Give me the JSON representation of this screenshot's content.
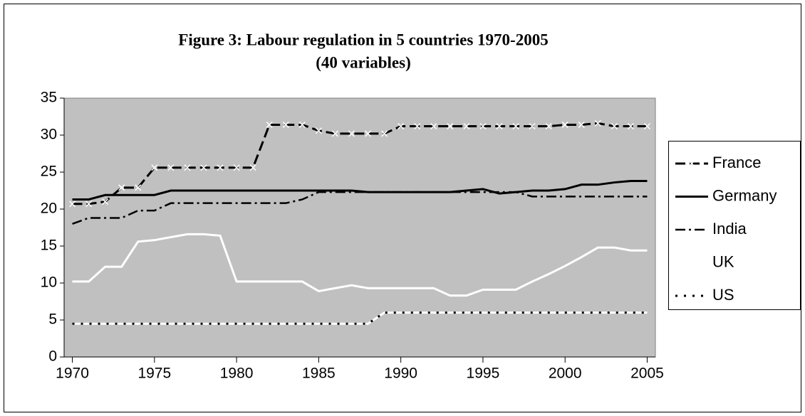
{
  "chart_data": {
    "type": "line",
    "title": "Figure 3: Labour regulation in 5 countries 1970-2005",
    "subtitle": "(40 variables)",
    "x": [
      1970,
      1971,
      1972,
      1973,
      1974,
      1975,
      1976,
      1977,
      1978,
      1979,
      1980,
      1981,
      1982,
      1983,
      1984,
      1985,
      1986,
      1987,
      1988,
      1989,
      1990,
      1991,
      1992,
      1993,
      1994,
      1995,
      1996,
      1997,
      1998,
      1999,
      2000,
      2001,
      2002,
      2003,
      2004,
      2005
    ],
    "xlim": [
      1969.5,
      2005.5
    ],
    "xticks": [
      1970,
      1975,
      1980,
      1985,
      1990,
      1995,
      2000,
      2005
    ],
    "ylim": [
      0,
      35
    ],
    "yticks": [
      0,
      5,
      10,
      15,
      20,
      25,
      30,
      35
    ],
    "legend": "right",
    "series": [
      {
        "name": "France",
        "color": "#000000",
        "values": [
          20.7,
          20.7,
          21.0,
          22.9,
          22.9,
          25.6,
          25.6,
          25.6,
          25.6,
          25.6,
          25.6,
          25.6,
          31.4,
          31.4,
          31.4,
          30.6,
          30.2,
          30.2,
          30.2,
          30.2,
          31.2,
          31.2,
          31.2,
          31.2,
          31.2,
          31.2,
          31.2,
          31.2,
          31.2,
          31.2,
          31.4,
          31.4,
          31.6,
          31.2,
          31.2,
          31.2
        ]
      },
      {
        "name": "Germany",
        "color": "#000000",
        "values": [
          21.3,
          21.3,
          21.9,
          21.9,
          21.9,
          21.9,
          22.5,
          22.5,
          22.5,
          22.5,
          22.5,
          22.5,
          22.5,
          22.5,
          22.5,
          22.5,
          22.5,
          22.5,
          22.3,
          22.3,
          22.3,
          22.3,
          22.3,
          22.3,
          22.5,
          22.7,
          22.1,
          22.3,
          22.5,
          22.5,
          22.7,
          23.3,
          23.3,
          23.6,
          23.8,
          23.8
        ]
      },
      {
        "name": "India",
        "color": "#000000",
        "values": [
          18.0,
          18.8,
          18.8,
          18.8,
          19.8,
          19.8,
          20.8,
          20.8,
          20.8,
          20.8,
          20.8,
          20.8,
          20.8,
          20.8,
          21.3,
          22.3,
          22.3,
          22.3,
          22.3,
          22.3,
          22.3,
          22.3,
          22.3,
          22.3,
          22.3,
          22.3,
          22.3,
          22.3,
          21.7,
          21.7,
          21.7,
          21.7,
          21.7,
          21.7,
          21.7,
          21.7
        ]
      },
      {
        "name": "UK",
        "color": "#ffffff",
        "values": [
          10.2,
          10.2,
          12.2,
          12.2,
          15.6,
          15.8,
          16.2,
          16.6,
          16.6,
          16.4,
          10.2,
          10.2,
          10.2,
          10.2,
          10.2,
          8.9,
          9.3,
          9.7,
          9.3,
          9.3,
          9.3,
          9.3,
          9.3,
          8.3,
          8.3,
          9.1,
          9.1,
          9.1,
          10.2,
          11.2,
          12.3,
          13.5,
          14.8,
          14.8,
          14.4,
          14.4
        ]
      },
      {
        "name": "US",
        "color": "#ffffff",
        "values": [
          4.5,
          4.5,
          4.5,
          4.5,
          4.5,
          4.5,
          4.5,
          4.5,
          4.5,
          4.5,
          4.5,
          4.5,
          4.5,
          4.5,
          4.5,
          4.5,
          4.5,
          4.5,
          4.5,
          6.0,
          6.0,
          6.0,
          6.0,
          6.0,
          6.0,
          6.0,
          6.0,
          6.0,
          6.0,
          6.0,
          6.0,
          6.0,
          6.0,
          6.0,
          6.0,
          6.0
        ]
      }
    ]
  }
}
